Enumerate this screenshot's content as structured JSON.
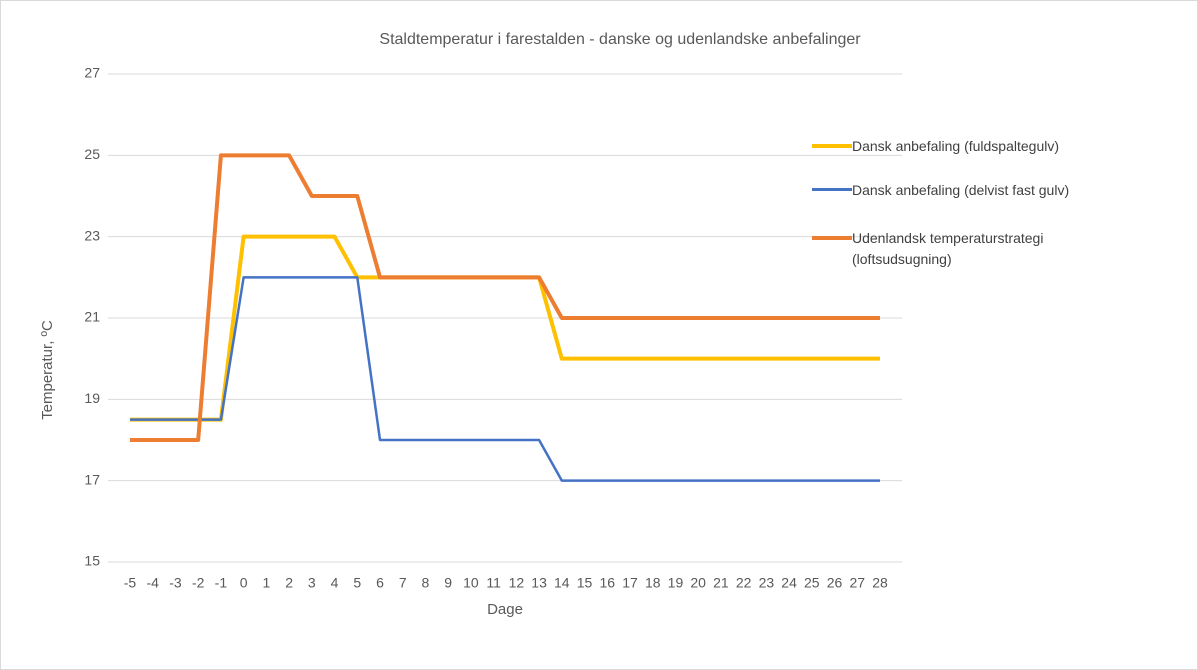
{
  "chart_data": {
    "type": "line",
    "title": "Staldtemperatur i farestalden - danske og udenlandske anbefalinger",
    "x_label": "Dage",
    "y_label": "Temperatur, ºC",
    "x": [
      -5,
      -4,
      -3,
      -2,
      -1,
      0,
      1,
      2,
      3,
      4,
      5,
      6,
      7,
      8,
      9,
      10,
      11,
      12,
      13,
      14,
      15,
      16,
      17,
      18,
      19,
      20,
      21,
      22,
      23,
      24,
      25,
      26,
      27,
      28
    ],
    "xlim": [
      -5,
      28
    ],
    "ylim": [
      15,
      27
    ],
    "yticks": [
      15,
      17,
      19,
      21,
      23,
      25,
      27
    ],
    "grid": true,
    "series": [
      {
        "name": "Dansk anbefaling (fuldspaltegulv)",
        "color": "#FFC000",
        "values": [
          18.5,
          18.5,
          18.5,
          18.5,
          18.5,
          23,
          23,
          23,
          23,
          23,
          22,
          22,
          22,
          22,
          22,
          22,
          22,
          22,
          22,
          20,
          20,
          20,
          20,
          20,
          20,
          20,
          20,
          20,
          20,
          20,
          20,
          20,
          20,
          20
        ]
      },
      {
        "name": "Dansk anbefaling (delvist fast gulv)",
        "color": "#4472C4",
        "values": [
          18.5,
          18.5,
          18.5,
          18.5,
          18.5,
          22,
          22,
          22,
          22,
          22,
          22,
          18,
          18,
          18,
          18,
          18,
          18,
          18,
          18,
          17,
          17,
          17,
          17,
          17,
          17,
          17,
          17,
          17,
          17,
          17,
          17,
          17,
          17,
          17
        ]
      },
      {
        "name": "Udenlandsk temperaturstrategi (loftsudsugning)",
        "color": "#ED7D31",
        "values": [
          18,
          18,
          18,
          18,
          25,
          25,
          25,
          25,
          24,
          24,
          24,
          22,
          22,
          22,
          22,
          22,
          22,
          22,
          22,
          21,
          21,
          21,
          21,
          21,
          21,
          21,
          21,
          21,
          21,
          21,
          21,
          21,
          21,
          21
        ]
      }
    ]
  }
}
